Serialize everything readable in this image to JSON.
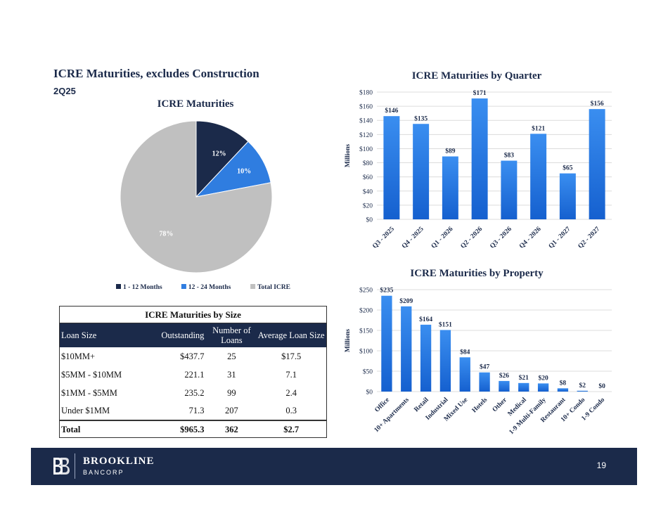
{
  "page": {
    "title": "ICRE Maturities, excludes Construction",
    "subtitle": "2Q25",
    "page_number": "19"
  },
  "brand": {
    "name": "BROOKLINE",
    "sub": "BANCORP"
  },
  "colors": {
    "navy": "#1b2a4a",
    "blue": "#2f7de0",
    "gray": "#c0c0c0",
    "bar_top": "#3a8ef0",
    "bar_bottom": "#1560cf"
  },
  "chart_data": [
    {
      "type": "pie",
      "title": "ICRE Maturities",
      "slices": [
        {
          "name": "1 - 12 Months",
          "value": 12,
          "label": "12%",
          "color": "#1b2a4a"
        },
        {
          "name": "12 - 24 Months",
          "value": 10,
          "label": "10%",
          "color": "#2f7de0"
        },
        {
          "name": "Total ICRE",
          "value": 78,
          "label": "78%",
          "color": "#c0c0c0"
        }
      ],
      "legend": "bottom"
    },
    {
      "type": "bar",
      "title": "ICRE Maturities by Quarter",
      "ylabel": "Millions",
      "categories": [
        "Q3 - 2025",
        "Q4 - 2025",
        "Q1 - 2026",
        "Q2 - 2026",
        "Q3 - 2026",
        "Q4 - 2026",
        "Q1 - 2027",
        "Q2 - 2027"
      ],
      "values": [
        146,
        135,
        89,
        171,
        83,
        121,
        65,
        156
      ],
      "data_labels": [
        "$146",
        "$135",
        "$89",
        "$171",
        "$83",
        "$121",
        "$65",
        "$156"
      ],
      "ylim": [
        0,
        180
      ],
      "yticks": [
        0,
        20,
        40,
        60,
        80,
        100,
        120,
        140,
        160,
        180
      ],
      "ytick_labels": [
        "$0",
        "$20",
        "$40",
        "$60",
        "$80",
        "$100",
        "$120",
        "$140",
        "$160",
        "$180"
      ],
      "grid": true
    },
    {
      "type": "bar",
      "title": "ICRE Maturities by Property",
      "ylabel": "Millions",
      "categories": [
        "Office",
        "10+ Apartments",
        "Retail",
        "Industrial",
        "Mixed Use",
        "Hotels",
        "Other",
        "Medical",
        "1-9 Multi-Family",
        "Restaurant",
        "10+ Condo",
        "1-9 Condo"
      ],
      "values": [
        235,
        209,
        164,
        151,
        84,
        47,
        26,
        21,
        20,
        8,
        2,
        0
      ],
      "data_labels": [
        "$235",
        "$209",
        "$164",
        "$151",
        "$84",
        "$47",
        "$26",
        "$21",
        "$20",
        "$8",
        "$2",
        "$0"
      ],
      "ylim": [
        0,
        250
      ],
      "yticks": [
        0,
        50,
        100,
        150,
        200,
        250
      ],
      "ytick_labels": [
        "$0",
        "$50",
        "$100",
        "$150",
        "$200",
        "$250"
      ],
      "grid": true
    },
    {
      "type": "table",
      "title": "ICRE Maturities by Size",
      "columns": [
        "Loan Size",
        "Outstanding",
        "Number of Loans",
        "Average Loan Size"
      ],
      "rows": [
        [
          "$10MM+",
          "$437.7",
          "25",
          "$17.5"
        ],
        [
          "$5MM - $10MM",
          "221.1",
          "31",
          "7.1"
        ],
        [
          "$1MM - $5MM",
          "235.2",
          "99",
          "2.4"
        ],
        [
          "Under $1MM",
          "71.3",
          "207",
          "0.3"
        ]
      ],
      "total": [
        "Total",
        "$965.3",
        "362",
        "$2.7"
      ]
    }
  ]
}
